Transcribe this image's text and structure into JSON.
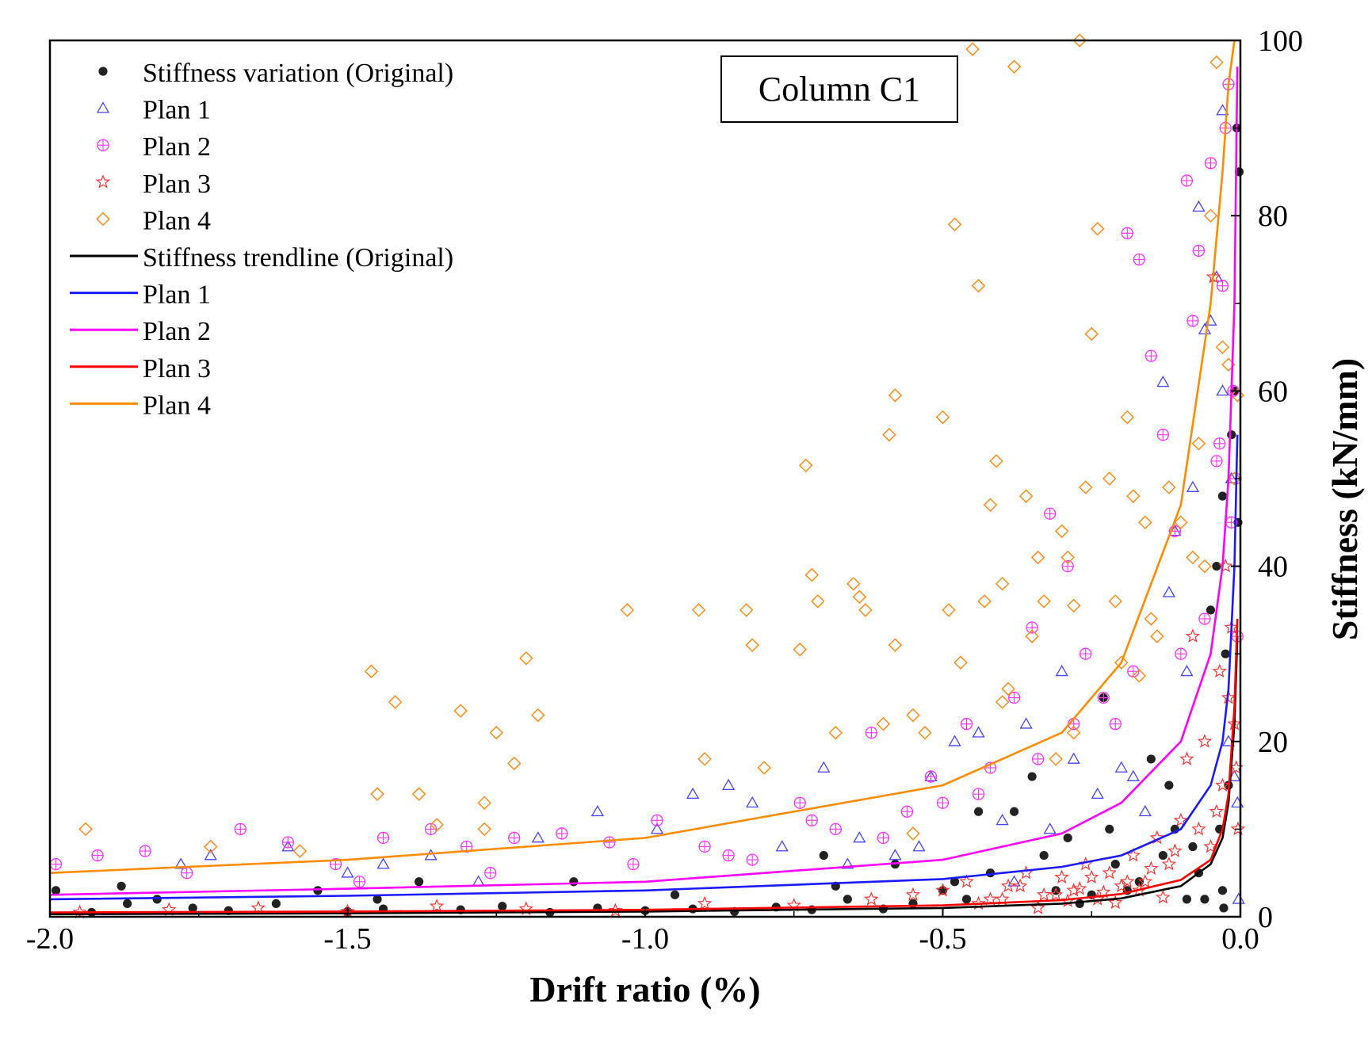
{
  "chart_data": {
    "type": "scatter",
    "title": "",
    "annotation": "Column C1",
    "xlabel": "Drift ratio (%)",
    "ylabel": "Stiffness (kN/mm)",
    "xlim": [
      -2.0,
      0.0
    ],
    "ylim": [
      0,
      100
    ],
    "x_ticks": [
      -2.0,
      -1.5,
      -1.0,
      -0.5,
      0.0
    ],
    "x_tick_labels": [
      "-2.0",
      "-1.5",
      "-1.0",
      "-0.5",
      "0.0"
    ],
    "y_ticks": [
      0,
      20,
      40,
      60,
      80,
      100
    ],
    "y_tick_labels": [
      "0",
      "20",
      "40",
      "60",
      "80",
      "100"
    ],
    "y_axis_side": "right",
    "grid": false,
    "legend_position": "top-left",
    "legend": [
      {
        "label": "Stiffness variation (Original)",
        "kind": "marker",
        "marker": "dot",
        "color": "#222222"
      },
      {
        "label": "Plan 1",
        "kind": "marker",
        "marker": "triangle",
        "color": "#4444ff"
      },
      {
        "label": "Plan 2",
        "kind": "marker",
        "marker": "circle-plus",
        "color": "#ff33ff"
      },
      {
        "label": "Plan 3",
        "kind": "marker",
        "marker": "star",
        "color": "#ff3333"
      },
      {
        "label": "Plan 4",
        "kind": "marker",
        "marker": "diamond",
        "color": "#ff8c1a"
      },
      {
        "label": "Stiffness trendline (Original)",
        "kind": "line",
        "color": "#000000"
      },
      {
        "label": "Plan 1",
        "kind": "line",
        "color": "#1a1aff"
      },
      {
        "label": "Plan 2",
        "kind": "line",
        "color": "#ff00ff"
      },
      {
        "label": "Plan 3",
        "kind": "line",
        "color": "#ff0000"
      },
      {
        "label": "Plan 4",
        "kind": "line",
        "color": "#ff8c00"
      }
    ],
    "trendlines": [
      {
        "name": "Stiffness trendline (Original)",
        "color": "#000000",
        "x": [
          -2.0,
          -1.5,
          -1.0,
          -0.5,
          -0.3,
          -0.2,
          -0.1,
          -0.05,
          -0.03,
          -0.02,
          -0.01,
          -0.005
        ],
        "y": [
          0.3,
          0.4,
          0.6,
          1.0,
          1.5,
          2.1,
          3.5,
          6.0,
          9.0,
          13.0,
          22.0,
          32.0
        ]
      },
      {
        "name": "Plan 1",
        "color": "#1a1aff",
        "x": [
          -2.0,
          -1.5,
          -1.0,
          -0.5,
          -0.3,
          -0.2,
          -0.1,
          -0.05,
          -0.03,
          -0.02,
          -0.01,
          -0.005
        ],
        "y": [
          2.0,
          2.4,
          3.0,
          4.3,
          5.7,
          7.0,
          10.0,
          15.0,
          20.0,
          26.0,
          40.0,
          55.0
        ]
      },
      {
        "name": "Plan 2",
        "color": "#ff00ff",
        "x": [
          -2.0,
          -1.5,
          -1.0,
          -0.5,
          -0.3,
          -0.2,
          -0.1,
          -0.05,
          -0.03,
          -0.02,
          -0.01,
          -0.005
        ],
        "y": [
          2.5,
          3.2,
          4.0,
          6.5,
          9.5,
          13.0,
          20.0,
          30.0,
          40.0,
          50.0,
          70.0,
          97.0
        ]
      },
      {
        "name": "Plan 3",
        "color": "#ff0000",
        "x": [
          -2.0,
          -1.5,
          -1.0,
          -0.5,
          -0.3,
          -0.2,
          -0.1,
          -0.05,
          -0.03,
          -0.02,
          -0.01,
          -0.005
        ],
        "y": [
          0.5,
          0.6,
          0.8,
          1.3,
          1.9,
          2.6,
          4.2,
          6.5,
          10.0,
          14.0,
          24.0,
          34.0
        ]
      },
      {
        "name": "Plan 4",
        "color": "#ff8c00",
        "x": [
          -2.0,
          -1.5,
          -1.0,
          -0.5,
          -0.3,
          -0.2,
          -0.1,
          -0.05,
          -0.03,
          -0.02,
          -0.01,
          -0.005
        ],
        "y": [
          5.0,
          6.5,
          9.0,
          15.0,
          21.0,
          29.0,
          47.0,
          70.0,
          85.0,
          95.0,
          100.0,
          100.0
        ]
      }
    ],
    "series": [
      {
        "name": "Stiffness variation (Original)",
        "marker": "dot",
        "color": "#222222",
        "x": [
          -1.99,
          -1.93,
          -1.87,
          -1.82,
          -1.76,
          -1.7,
          -1.62,
          -1.55,
          -1.5,
          -1.44,
          -1.38,
          -1.31,
          -1.24,
          -1.16,
          -1.08,
          -1.0,
          -0.92,
          -0.85,
          -0.78,
          -0.72,
          -0.66,
          -0.6,
          -0.55,
          -0.5,
          -0.46,
          -0.42,
          -0.38,
          -0.35,
          -0.33,
          -0.31,
          -0.29,
          -0.27,
          -0.25,
          -0.23,
          -0.21,
          -0.19,
          -0.17,
          -0.15,
          -0.13,
          -0.11,
          -0.09,
          -0.07,
          -0.05,
          -0.04,
          -0.035,
          -0.03,
          -0.025,
          -0.02,
          -0.015,
          -0.01,
          -0.006,
          -0.004,
          -0.002,
          -0.22,
          -0.44,
          -0.48,
          -0.58,
          -0.68,
          -0.7,
          -0.95,
          -1.12,
          -1.45,
          -1.88,
          -0.12,
          -0.08,
          -0.06,
          -0.03,
          -0.028
        ],
        "y": [
          3.0,
          0.5,
          1.5,
          2.0,
          1.0,
          0.7,
          1.5,
          3.0,
          0.6,
          0.9,
          4.0,
          0.8,
          1.2,
          0.5,
          1.0,
          0.7,
          0.9,
          0.6,
          1.1,
          0.8,
          2.0,
          0.9,
          1.5,
          3.0,
          2.0,
          5.0,
          12.0,
          16.0,
          7.0,
          3.0,
          9.0,
          1.5,
          2.5,
          25.0,
          6.0,
          3.0,
          4.0,
          18.0,
          7.0,
          10.0,
          2.0,
          5.0,
          35.0,
          40.0,
          10.0,
          48.0,
          30.0,
          15.0,
          55.0,
          60.0,
          90.0,
          45.0,
          85.0,
          10.0,
          12.0,
          4.0,
          6.0,
          3.5,
          7.0,
          2.5,
          4.0,
          2.0,
          3.5,
          15.0,
          8.0,
          2.0,
          3.0,
          1.0
        ]
      },
      {
        "name": "Plan 1",
        "marker": "triangle",
        "color": "#4444ff",
        "x": [
          -1.78,
          -1.73,
          -1.6,
          -1.5,
          -1.44,
          -1.36,
          -1.28,
          -1.18,
          -1.08,
          -0.98,
          -0.92,
          -0.86,
          -0.82,
          -0.77,
          -0.7,
          -0.64,
          -0.58,
          -0.52,
          -0.48,
          -0.44,
          -0.4,
          -0.36,
          -0.32,
          -0.28,
          -0.24,
          -0.2,
          -0.16,
          -0.13,
          -0.11,
          -0.09,
          -0.07,
          -0.05,
          -0.04,
          -0.03,
          -0.02,
          -0.015,
          -0.01,
          -0.005,
          -0.66,
          -0.54,
          -0.38,
          -0.3,
          -0.18,
          -0.08,
          -0.06,
          -0.03,
          -0.12,
          -0.003
        ],
        "y": [
          6.0,
          7.0,
          8.0,
          5.0,
          6.0,
          7.0,
          4.0,
          9.0,
          12.0,
          10.0,
          14.0,
          15.0,
          13.0,
          8.0,
          17.0,
          9.0,
          7.0,
          16.0,
          20.0,
          21.0,
          11.0,
          22.0,
          10.0,
          18.0,
          14.0,
          17.0,
          12.0,
          61.0,
          44.0,
          28.0,
          81.0,
          68.0,
          73.0,
          92.0,
          20.0,
          50.0,
          16.0,
          13.0,
          6.0,
          8.0,
          4.0,
          28.0,
          16.0,
          49.0,
          67.0,
          60.0,
          37.0,
          2.0
        ]
      },
      {
        "name": "Plan 2",
        "marker": "circle-plus",
        "color": "#ff33ff",
        "x": [
          -1.99,
          -1.92,
          -1.84,
          -1.77,
          -1.68,
          -1.6,
          -1.52,
          -1.44,
          -1.36,
          -1.3,
          -1.22,
          -1.14,
          -1.06,
          -0.98,
          -0.9,
          -0.82,
          -0.74,
          -0.68,
          -0.62,
          -0.56,
          -0.5,
          -0.46,
          -0.42,
          -0.38,
          -0.35,
          -0.32,
          -0.29,
          -0.26,
          -0.23,
          -0.21,
          -0.19,
          -0.17,
          -0.15,
          -0.13,
          -0.11,
          -0.09,
          -0.08,
          -0.07,
          -0.06,
          -0.05,
          -0.04,
          -0.035,
          -0.03,
          -0.025,
          -0.02,
          -0.015,
          -0.012,
          -0.008,
          -0.005,
          -0.1,
          -0.18,
          -0.28,
          -0.34,
          -0.44,
          -0.52,
          -0.6,
          -0.72,
          -0.86,
          -1.02,
          -1.26,
          -1.48
        ],
        "y": [
          6.0,
          7.0,
          7.5,
          5.0,
          10.0,
          8.5,
          6.0,
          9.0,
          10.0,
          8.0,
          9.0,
          9.5,
          8.5,
          11.0,
          8.0,
          6.5,
          13.0,
          10.0,
          21.0,
          12.0,
          13.0,
          22.0,
          17.0,
          25.0,
          33.0,
          46.0,
          40.0,
          30.0,
          25.0,
          22.0,
          78.0,
          75.0,
          64.0,
          55.0,
          44.0,
          84.0,
          68.0,
          76.0,
          34.0,
          86.0,
          52.0,
          54.0,
          72.0,
          90.0,
          95.0,
          45.0,
          60.0,
          50.0,
          32.0,
          30.0,
          28.0,
          22.0,
          18.0,
          14.0,
          16.0,
          9.0,
          11.0,
          7.0,
          6.0,
          5.0,
          4.0
        ]
      },
      {
        "name": "Plan 3",
        "marker": "star",
        "color": "#ff3333",
        "x": [
          -1.95,
          -1.8,
          -1.65,
          -1.5,
          -1.35,
          -1.2,
          -1.05,
          -0.9,
          -0.75,
          -0.62,
          -0.55,
          -0.5,
          -0.46,
          -0.42,
          -0.39,
          -0.36,
          -0.33,
          -0.3,
          -0.28,
          -0.26,
          -0.24,
          -0.22,
          -0.2,
          -0.18,
          -0.16,
          -0.14,
          -0.12,
          -0.1,
          -0.09,
          -0.08,
          -0.07,
          -0.06,
          -0.05,
          -0.045,
          -0.04,
          -0.035,
          -0.03,
          -0.025,
          -0.02,
          -0.015,
          -0.01,
          -0.007,
          -0.004,
          -0.44,
          -0.4,
          -0.37,
          -0.34,
          -0.31,
          -0.29,
          -0.27,
          -0.25,
          -0.23,
          -0.21,
          -0.19,
          -0.17,
          -0.15,
          -0.13,
          -0.11
        ],
        "y": [
          0.5,
          0.8,
          1.0,
          0.6,
          1.2,
          0.9,
          0.7,
          1.5,
          1.3,
          2.0,
          2.5,
          3.0,
          4.0,
          2.0,
          3.5,
          5.0,
          2.5,
          4.5,
          3.0,
          6.0,
          2.0,
          5.0,
          3.5,
          7.0,
          4.0,
          9.0,
          6.0,
          11.0,
          18.0,
          32.0,
          10.0,
          20.0,
          8.0,
          73.0,
          12.0,
          28.0,
          15.0,
          40.0,
          25.0,
          33.0,
          22.0,
          17.0,
          10.0,
          1.5,
          2.0,
          3.5,
          1.0,
          2.5,
          1.8,
          3.2,
          4.5,
          2.8,
          1.6,
          4.0,
          3.0,
          5.5,
          2.2,
          7.5
        ]
      },
      {
        "name": "Plan 4",
        "marker": "diamond",
        "color": "#ff8c1a",
        "x": [
          -1.94,
          -1.73,
          -1.58,
          -1.46,
          -1.45,
          -1.42,
          -1.38,
          -1.35,
          -1.31,
          -1.27,
          -1.25,
          -1.22,
          -1.2,
          -1.18,
          -1.03,
          -0.91,
          -0.9,
          -0.83,
          -0.82,
          -0.8,
          -0.74,
          -0.73,
          -0.72,
          -0.71,
          -0.68,
          -0.65,
          -0.64,
          -0.63,
          -0.6,
          -0.59,
          -0.58,
          -0.58,
          -0.55,
          -0.53,
          -0.5,
          -0.49,
          -0.48,
          -0.47,
          -0.44,
          -0.43,
          -0.42,
          -0.41,
          -0.4,
          -0.39,
          -0.38,
          -0.36,
          -0.35,
          -0.34,
          -0.33,
          -0.31,
          -0.3,
          -0.29,
          -0.28,
          -0.27,
          -0.26,
          -0.25,
          -0.24,
          -0.22,
          -0.21,
          -0.2,
          -0.19,
          -0.18,
          -0.17,
          -0.16,
          -0.15,
          -0.14,
          -0.12,
          -0.1,
          -0.08,
          -0.07,
          -0.06,
          -0.05,
          -0.04,
          -0.03,
          -0.02,
          -0.01,
          -0.005,
          -0.28,
          -0.4,
          -0.45,
          -1.27,
          -0.55
        ],
        "y": [
          10.0,
          8.0,
          7.5,
          28.0,
          14.0,
          24.5,
          14.0,
          10.5,
          23.5,
          10.0,
          21.0,
          17.5,
          29.5,
          23.0,
          35.0,
          35.0,
          18.0,
          35.0,
          31.0,
          17.0,
          30.5,
          51.5,
          39.0,
          36.0,
          21.0,
          38.0,
          36.5,
          35.0,
          22.0,
          55.0,
          59.5,
          31.0,
          23.0,
          21.0,
          57.0,
          35.0,
          79.0,
          29.0,
          72.0,
          36.0,
          47.0,
          52.0,
          24.5,
          26.0,
          97.0,
          48.0,
          32.0,
          41.0,
          36.0,
          18.0,
          44.0,
          41.0,
          35.5,
          100.0,
          49.0,
          66.5,
          78.5,
          50.0,
          36.0,
          29.0,
          57.0,
          48.0,
          27.5,
          45.0,
          34.0,
          32.0,
          49.0,
          45.0,
          41.0,
          54.0,
          40.0,
          80.0,
          97.5,
          65.0,
          63.0,
          50.0,
          59.5,
          21.0,
          38.0,
          99.0,
          13.0,
          9.5
        ]
      }
    ]
  }
}
